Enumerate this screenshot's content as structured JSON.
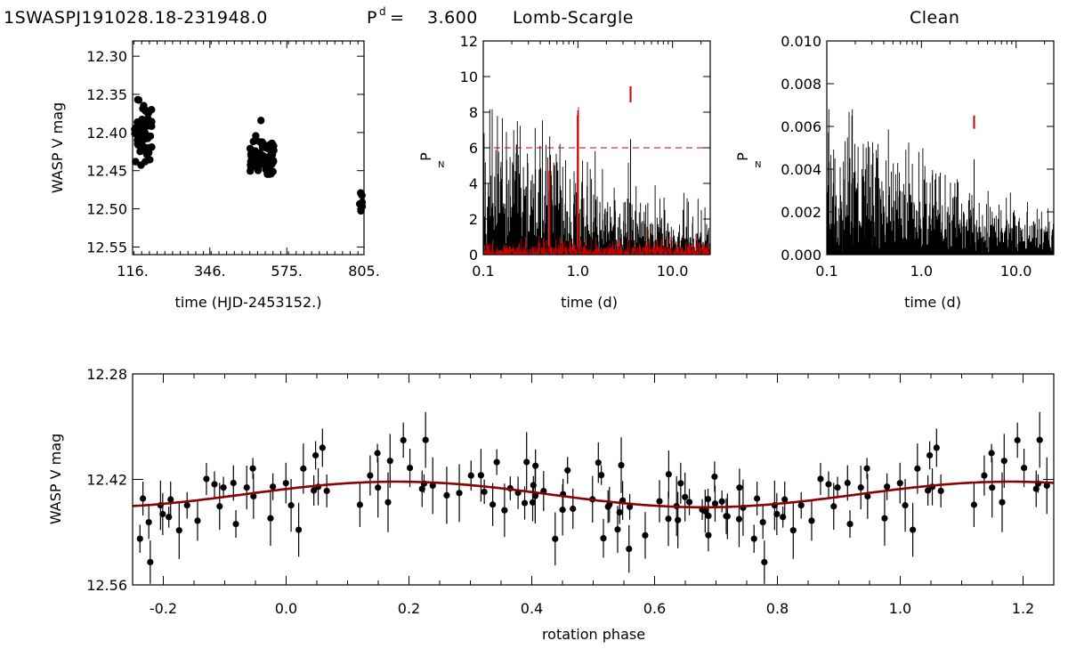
{
  "header": {
    "star_id": "1SWASPJ191028.18-231948.0",
    "period_label": "P",
    "period_sup": "d",
    "period_eq": "=",
    "period_value": "3.600",
    "method_ls": "Lomb-Scargle",
    "method_clean": "Clean"
  },
  "colors": {
    "accent": "#cc0000",
    "ink": "#000000",
    "background": "#ffffff"
  },
  "chart_data": [
    {
      "id": "lightcurve",
      "type": "scatter",
      "title": "",
      "xlabel": "time (HJD-2453152.)",
      "ylabel": "WASP V mag",
      "xlim": [
        116,
        805
      ],
      "ylim": [
        12.28,
        12.56
      ],
      "y_inverted": true,
      "xticks": [
        "116.",
        "346.",
        "575.",
        "805."
      ],
      "yticks": [
        "12.30",
        "12.35",
        "12.40",
        "12.45",
        "12.50",
        "12.55"
      ],
      "clusters": [
        {
          "x_center": 150,
          "x_spread": 28,
          "y_mean": 12.4,
          "y_spread": 0.033,
          "n": 55
        },
        {
          "x_center": 502,
          "x_spread": 36,
          "y_mean": 12.435,
          "y_spread": 0.022,
          "n": 80
        },
        {
          "x_center": 798,
          "x_spread": 6,
          "y_mean": 12.49,
          "y_spread": 0.014,
          "n": 8
        }
      ]
    },
    {
      "id": "lomb_scargle",
      "type": "line",
      "title": "Lomb-Scargle",
      "xlabel": "time (d)",
      "ylabel": "P",
      "ylabel_sub": "N",
      "xscale": "log",
      "xlim": [
        0.1,
        25
      ],
      "ylim": [
        0,
        12
      ],
      "xticks": [
        "0.1",
        "1.0",
        "10.0"
      ],
      "yticks": [
        "0",
        "2",
        "4",
        "6",
        "8",
        "10",
        "12"
      ],
      "significance_level": 6.0,
      "peak_period": 3.6,
      "peak_power": 9.0,
      "window_peaks": [
        0.5,
        1.0
      ]
    },
    {
      "id": "clean",
      "type": "line",
      "title": "Clean",
      "xlabel": "time (d)",
      "ylabel": "P",
      "ylabel_sub": "N",
      "xscale": "log",
      "xlim": [
        0.1,
        25
      ],
      "ylim": [
        0,
        0.01
      ],
      "xticks": [
        "0.1",
        "1.0",
        "10.0"
      ],
      "yticks": [
        "0.000",
        "0.002",
        "0.004",
        "0.006",
        "0.008",
        "0.010"
      ],
      "peak_period": 3.6,
      "peak_power": 0.0062
    },
    {
      "id": "phase_fold",
      "type": "scatter",
      "title": "",
      "xlabel": "rotation phase",
      "ylabel": "WASP V mag",
      "xlim": [
        -0.25,
        1.25
      ],
      "ylim": [
        12.28,
        12.56
      ],
      "y_inverted": true,
      "xticks": [
        "-0.2",
        "0.0",
        "0.2",
        "0.4",
        "0.6",
        "0.8",
        "1.0",
        "1.2"
      ],
      "yticks": [
        "12.28",
        "12.42",
        "12.56"
      ],
      "model": {
        "mean": 12.44,
        "amplitude": 0.017,
        "phase_of_min_mag": 0.18
      },
      "n_points": 200
    }
  ]
}
